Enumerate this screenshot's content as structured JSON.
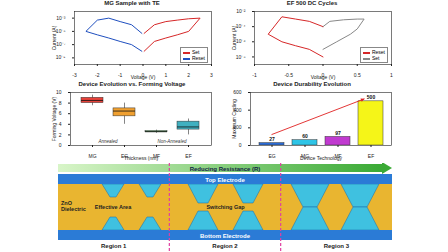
{
  "chart_data": [
    {
      "type": "line",
      "title": "MG Sample with TE",
      "x_label": "Voltage (V)",
      "y_label": "Current (A)",
      "log": "y",
      "legend": "bottom-right",
      "xlim": [
        -3,
        3
      ],
      "xticks": [
        -3,
        -2,
        -1,
        0,
        1,
        2,
        3
      ],
      "ylim": [
        1e-10,
        0.01
      ],
      "yticks": [
        {
          "value": 1e-09,
          "label": "10⁻⁹"
        },
        {
          "value": 1e-07,
          "label": "10⁻⁷"
        },
        {
          "value": 1e-05,
          "label": "10⁻⁵"
        },
        {
          "value": 0.001,
          "label": "10⁻³"
        }
      ],
      "series": [
        {
          "name": "Set",
          "color": "#d62728",
          "x": [
            0.05,
            0.5,
            1,
            1.5,
            2,
            2.5,
            2,
            1.5,
            1,
            0.5,
            0.05
          ],
          "values": [
            1e-08,
            3e-07,
            1e-06,
            3e-06,
            1e-05,
            0.001,
            0.0008,
            0.0005,
            0.0003,
            0.0001,
            5e-06
          ]
        },
        {
          "name": "Reset",
          "color": "#1f4fbf",
          "x": [
            -0.05,
            -0.5,
            -1,
            -1.5,
            -2,
            -2.5,
            -2,
            -1.5,
            -1,
            -0.5,
            -0.05
          ],
          "values": [
            5e-06,
            0.0001,
            0.0003,
            0.001,
            0.0005,
            1e-05,
            3e-06,
            1e-06,
            3e-07,
            1e-07,
            1e-08
          ]
        }
      ]
    },
    {
      "type": "line",
      "title": "EF 500 DC Cycles",
      "x_label": "Voltage (V)",
      "y_label": "Current (A)",
      "log": "y",
      "legend": "bottom-right",
      "xlim": [
        -1,
        1
      ],
      "xticks": [
        -1,
        -0.5,
        0,
        0.5,
        1
      ],
      "ylim": [
        1e-09,
        0.01
      ],
      "yticks": [
        {
          "value": 1e-08,
          "label": "10⁻⁸"
        },
        {
          "value": 1e-06,
          "label": "10⁻⁶"
        },
        {
          "value": 0.0001,
          "label": "10⁻⁴"
        },
        {
          "value": 0.01,
          "label": "10⁻²"
        }
      ],
      "series": [
        {
          "name": "Reset",
          "color": "#d62728",
          "x": [
            0,
            -0.2,
            -0.4,
            -0.6,
            -0.8,
            -0.6,
            -0.4,
            -0.2,
            0
          ],
          "values": [
            0.0001,
            0.0005,
            0.001,
            0.002,
            1e-05,
            1e-06,
            3e-07,
            1e-07,
            1e-08
          ]
        },
        {
          "name": "Set",
          "color": "#888888",
          "x": [
            0,
            0.2,
            0.4,
            0.5,
            0.6,
            0.5,
            0.3,
            0.1,
            0
          ],
          "values": [
            1e-07,
            1e-06,
            1e-05,
            5e-05,
            0.001,
            0.001,
            0.0008,
            0.0005,
            0.0001
          ]
        }
      ]
    },
    {
      "type": "box",
      "title": "Device Evolution vs. Forming Voltage",
      "x_label": "Thickness (nm)",
      "y_label": "Forming Voltage (V)",
      "categories": [
        "MG",
        "EG",
        "MF",
        "EF"
      ],
      "min": [
        7.5,
        4,
        2.3,
        2
      ],
      "q1": [
        8,
        5.5,
        2.5,
        3
      ],
      "median": [
        8.5,
        6.5,
        2.6,
        3.5
      ],
      "q3": [
        9,
        7,
        2.7,
        4.5
      ],
      "max": [
        9.5,
        8,
        2.9,
        5
      ],
      "colors": [
        "#e8423a",
        "#f0a030",
        "#3cb44b",
        "#40b0c0"
      ],
      "groups": [
        {
          "label": "Annealed",
          "categories": [
            "MG",
            "EG"
          ]
        },
        {
          "label": "Non-Annealed",
          "categories": [
            "MF",
            "EF"
          ]
        }
      ],
      "ylim": [
        0,
        10
      ],
      "yticks": [
        0,
        2,
        4,
        6,
        8,
        10
      ]
    },
    {
      "type": "bar",
      "title": "Device Durability Evolution",
      "x_label": "Device Technology",
      "y_label": "Maximum Cycling",
      "categories": [
        "EG",
        "MG",
        "MF",
        "EF"
      ],
      "values": [
        27,
        60,
        97,
        500
      ],
      "colors": [
        "#2b6cd6",
        "#2ec4e6",
        "#c03ad0",
        "#f5f518"
      ],
      "data_labels": true,
      "ylim": [
        0,
        600
      ],
      "yticks": [
        0,
        200,
        400,
        600
      ]
    }
  ],
  "diagram": {
    "arrow_label": "Reducing Resistance (R)",
    "top_electrode": "Top Electrode",
    "bottom_electrode": "Bottom Electrode",
    "dielectric_label": "ZnO Dielectric",
    "effective_area_label": "Effective Area",
    "switching_gap_label": "Switching Gap",
    "regions": [
      "Region 1",
      "Region 2",
      "Region 3"
    ]
  }
}
